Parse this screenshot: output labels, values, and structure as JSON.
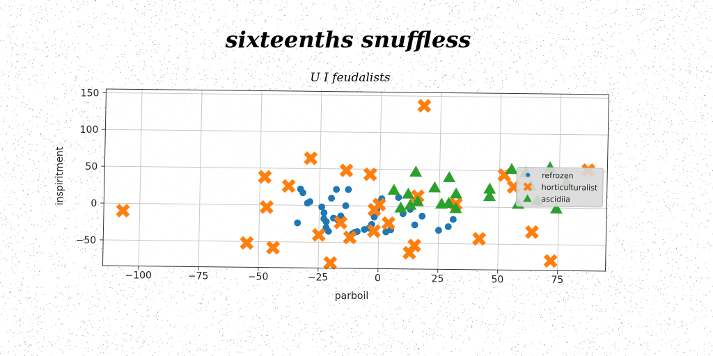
{
  "chart_data": {
    "type": "scatter",
    "title": "sixteenths snuffless",
    "subtitle": "U I feudalists",
    "xlabel": "parboil",
    "ylabel": "inspiritment",
    "xlim": [
      -115,
      95
    ],
    "ylim": [
      -85,
      155
    ],
    "xticks": [
      -100,
      -75,
      -50,
      -25,
      0,
      25,
      50,
      75
    ],
    "yticks": [
      -50,
      0,
      50,
      100,
      150
    ],
    "grid": true,
    "legend_position": "center-right",
    "series": [
      {
        "name": "refrozen",
        "marker": "circle",
        "color": "#1f77b4",
        "points": [
          [
            -34,
            -24
          ],
          [
            -33,
            22
          ],
          [
            -32,
            17
          ],
          [
            -30,
            3
          ],
          [
            -29,
            5
          ],
          [
            -24,
            -2
          ],
          [
            -23,
            -10
          ],
          [
            -23,
            -18
          ],
          [
            -22,
            -22
          ],
          [
            -22,
            -30
          ],
          [
            -21,
            -35
          ],
          [
            -20,
            10
          ],
          [
            -19,
            -17
          ],
          [
            -18,
            22
          ],
          [
            -17,
            -20
          ],
          [
            -16,
            -14
          ],
          [
            -14,
            0
          ],
          [
            -13,
            22
          ],
          [
            -11,
            -38
          ],
          [
            -10,
            -36
          ],
          [
            -9,
            -35
          ],
          [
            -6,
            -32
          ],
          [
            -4,
            -30
          ],
          [
            -3,
            -25
          ],
          [
            -2,
            -15
          ],
          [
            -1,
            -5
          ],
          [
            0,
            5
          ],
          [
            1,
            10
          ],
          [
            3,
            -35
          ],
          [
            5,
            -32
          ],
          [
            8,
            12
          ],
          [
            10,
            -10
          ],
          [
            13,
            -4
          ],
          [
            15,
            -25
          ],
          [
            18,
            -13
          ],
          [
            25,
            -32
          ],
          [
            29,
            -27
          ],
          [
            31,
            -17
          ]
        ]
      },
      {
        "name": "horticulturalist",
        "marker": "x",
        "color": "#ff7f0e",
        "points": [
          [
            -107,
            -10
          ],
          [
            -55,
            -52
          ],
          [
            -48,
            38
          ],
          [
            -47,
            -3
          ],
          [
            -44,
            -58
          ],
          [
            -38,
            26
          ],
          [
            -29,
            64
          ],
          [
            -25,
            -40
          ],
          [
            -20,
            -78
          ],
          [
            -16,
            -23
          ],
          [
            -14,
            48
          ],
          [
            -12,
            -43
          ],
          [
            -4,
            43
          ],
          [
            -2,
            -34
          ],
          [
            -2,
            -5
          ],
          [
            0,
            2
          ],
          [
            4,
            -23
          ],
          [
            13,
            -63
          ],
          [
            15,
            -53
          ],
          [
            16,
            14
          ],
          [
            18,
            137
          ],
          [
            32,
            4
          ],
          [
            42,
            -43
          ],
          [
            52,
            44
          ],
          [
            56,
            28
          ],
          [
            64,
            -33
          ],
          [
            72,
            -72
          ],
          [
            87,
            52
          ]
        ]
      },
      {
        "name": "ascidiia",
        "marker": "triangle",
        "color": "#2ca02c",
        "points": [
          [
            6,
            22
          ],
          [
            9,
            -2
          ],
          [
            12,
            17
          ],
          [
            13,
            2
          ],
          [
            15,
            47
          ],
          [
            16,
            7
          ],
          [
            23,
            26
          ],
          [
            26,
            4
          ],
          [
            29,
            40
          ],
          [
            29,
            5
          ],
          [
            32,
            -2
          ],
          [
            32,
            18
          ],
          [
            46,
            25
          ],
          [
            46,
            15
          ],
          [
            55,
            52
          ],
          [
            58,
            5
          ],
          [
            61,
            48
          ],
          [
            63,
            30
          ],
          [
            66,
            10
          ],
          [
            71,
            55
          ],
          [
            74,
            -1
          ],
          [
            78,
            35
          ]
        ]
      }
    ]
  }
}
